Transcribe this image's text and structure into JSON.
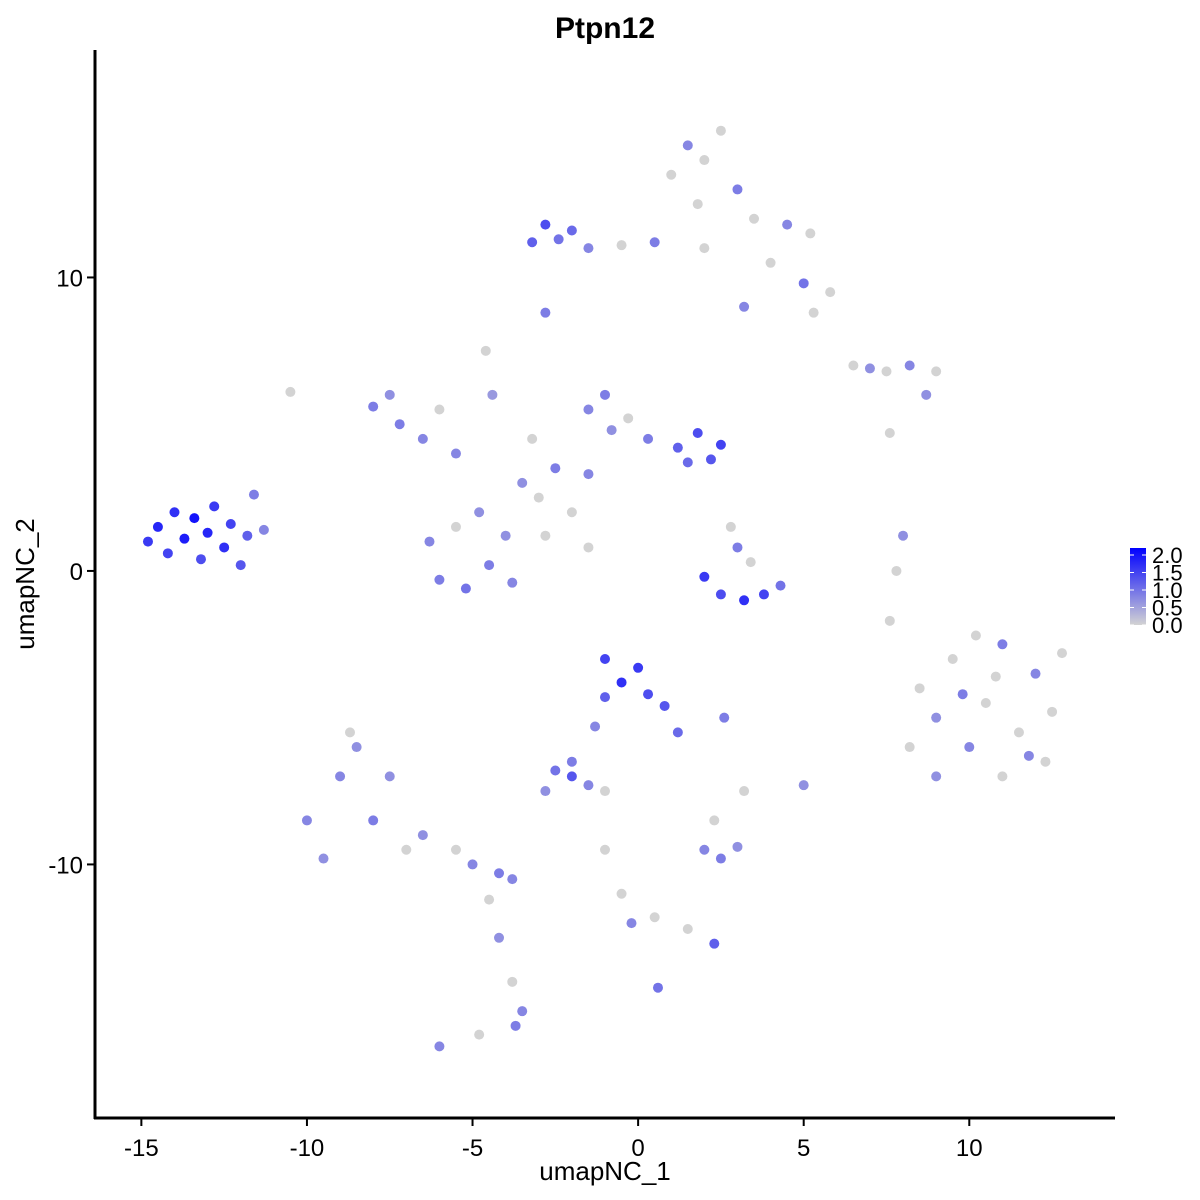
{
  "chart_data": {
    "type": "scatter",
    "title": "Ptpn12",
    "xlabel": "umapNC_1",
    "ylabel": "umapNC_2",
    "xlim": [
      -16.4,
      14.4
    ],
    "ylim": [
      -18.64,
      17.75
    ],
    "xticks": [
      -15,
      -10,
      -5,
      0,
      5,
      10
    ],
    "yticks": [
      -10,
      0,
      10
    ],
    "color_low": "#d3d3d3",
    "color_high": "#0000ff",
    "legend_lim": [
      0,
      2.2
    ],
    "legend_ticks": [
      {
        "value": 0,
        "label": "0.0"
      },
      {
        "value": 0.5,
        "label": "0.5"
      },
      {
        "value": 1,
        "label": "1.0"
      },
      {
        "value": 1.5,
        "label": "1.5"
      },
      {
        "value": 2,
        "label": "2.0"
      }
    ],
    "x": [
      -14.8,
      -14.5,
      -14.2,
      -14.0,
      -13.7,
      -13.4,
      -13.2,
      -13.0,
      -12.8,
      -12.5,
      -12.3,
      -12.0,
      -11.8,
      -11.6,
      -11.3,
      -8.0,
      -7.5,
      -7.2,
      -6.5,
      -6.0,
      -5.5,
      -4.6,
      -4.4,
      -6.3,
      -6.0,
      -5.2,
      -4.5,
      -4.0,
      -5.5,
      -4.8,
      -3.8,
      -3.5,
      -3.0,
      -2.5,
      -2.0,
      -1.5,
      -3.2,
      -1.5,
      -2.8,
      -1.5,
      -1.0,
      -0.8,
      -0.3,
      0.3,
      1.2,
      1.8,
      2.2,
      2.5,
      1.5,
      -3.2,
      -2.8,
      -2.4,
      -2.0,
      -1.5,
      -0.5,
      0.5,
      1.0,
      1.5,
      2.0,
      2.5,
      3.0,
      1.8,
      3.5,
      4.5,
      5.2,
      4.0,
      5.0,
      5.8,
      5.3,
      3.2,
      2.0,
      -2.8,
      6.5,
      7.0,
      7.5,
      8.2,
      9.0,
      8.7,
      7.6,
      -10.5,
      2.0,
      2.5,
      3.2,
      3.8,
      4.3,
      3.0,
      2.8,
      3.4,
      8.0,
      7.8,
      7.6,
      8.5,
      9.0,
      9.5,
      10.0,
      10.5,
      11.0,
      11.5,
      12.0,
      12.5,
      11.0,
      9.0,
      10.2,
      12.8,
      9.8,
      11.8,
      8.2,
      10.8,
      12.3,
      -10.0,
      -9.5,
      -9.0,
      -8.5,
      -8.0,
      -7.5,
      -8.7,
      -7.0,
      -6.5,
      -5.5,
      -5.0,
      -4.2,
      -3.8,
      -4.5,
      -4.2,
      -3.8,
      -3.5,
      -3.7,
      -6.0,
      -4.8,
      -1.0,
      -0.5,
      0,
      0.3,
      -1.0,
      0.8,
      1.2,
      -1.3,
      -2.0,
      -2.5,
      -2.0,
      -1.5,
      -2.8,
      -1.0,
      2.6,
      2.3,
      2.0,
      2.5,
      3.0,
      3.2,
      5.0,
      -1.0,
      -0.5,
      -0.2,
      0.5,
      1.5,
      2.3,
      0.6
    ],
    "y": [
      1.0,
      1.5,
      0.6,
      2.0,
      1.1,
      1.8,
      0.4,
      1.3,
      2.2,
      0.8,
      1.6,
      0.2,
      1.2,
      2.6,
      1.4,
      5.6,
      6.0,
      5.0,
      4.5,
      5.5,
      4.0,
      7.5,
      6.0,
      1.0,
      -0.3,
      -0.6,
      0.2,
      1.2,
      1.5,
      2.0,
      -0.4,
      3.0,
      2.5,
      3.5,
      2.0,
      3.3,
      4.5,
      0.8,
      1.2,
      5.5,
      6.0,
      4.8,
      5.2,
      4.5,
      4.2,
      4.7,
      3.8,
      4.3,
      3.7,
      11.2,
      11.8,
      11.3,
      11.6,
      11.0,
      11.1,
      11.2,
      13.5,
      14.5,
      14.0,
      15.0,
      13.0,
      12.5,
      12.0,
      11.8,
      11.5,
      10.5,
      9.8,
      9.5,
      8.8,
      9.0,
      11.0,
      8.8,
      7.0,
      6.9,
      6.8,
      7.0,
      6.8,
      6.0,
      4.7,
      6.1,
      -0.2,
      -0.8,
      -1.0,
      -0.8,
      -0.5,
      0.8,
      1.5,
      0.3,
      1.2,
      0,
      -1.7,
      -4.0,
      -5.0,
      -3.0,
      -6.0,
      -4.5,
      -2.5,
      -5.5,
      -3.5,
      -4.8,
      -7.0,
      -7.0,
      -2.2,
      -2.8,
      -4.2,
      -6.3,
      -6.0,
      -3.6,
      -6.5,
      -8.5,
      -9.8,
      -7.0,
      -6.0,
      -8.5,
      -7.0,
      -5.5,
      -9.5,
      -9.0,
      -9.5,
      -10.0,
      -10.3,
      -10.5,
      -11.2,
      -12.5,
      -14.0,
      -15.0,
      -15.5,
      -16.2,
      -15.8,
      -3.0,
      -3.8,
      -3.3,
      -4.2,
      -4.3,
      -4.6,
      -5.5,
      -5.3,
      -6.5,
      -6.8,
      -7.0,
      -7.3,
      -7.5,
      -7.5,
      -5.0,
      -8.5,
      -9.5,
      -9.8,
      -9.4,
      -7.5,
      -7.3,
      -9.5,
      -11.0,
      -12.0,
      -11.8,
      -12.2,
      -12.7,
      -14.2
    ],
    "expression": [
      1.6,
      1.8,
      1.5,
      1.7,
      1.9,
      2.0,
      1.4,
      1.8,
      1.6,
      1.7,
      1.5,
      1.3,
      1.2,
      0.9,
      0.8,
      0.9,
      0.7,
      0.9,
      0.8,
      0,
      0.8,
      0,
      0.6,
      0.8,
      0.9,
      1.0,
      0.9,
      0.7,
      0,
      0.7,
      0.8,
      0.7,
      0,
      0.9,
      0,
      0.8,
      0,
      0,
      0,
      0.8,
      0.9,
      0.7,
      0,
      0.9,
      1.2,
      1.4,
      1.3,
      1.5,
      1.1,
      1.2,
      1.4,
      1.0,
      1.1,
      0.8,
      0,
      0.9,
      0,
      0.8,
      0,
      0,
      0.9,
      0,
      0,
      0.8,
      0,
      0,
      1.0,
      0,
      0,
      0.8,
      0,
      0.9,
      0,
      0.7,
      0,
      0.8,
      0,
      0.7,
      0,
      0,
      1.6,
      1.4,
      1.7,
      1.5,
      1.0,
      0.9,
      0,
      0,
      0.7,
      0,
      0,
      0,
      0.7,
      0,
      0.8,
      0,
      0.9,
      0,
      0.8,
      0,
      0,
      0.7,
      0,
      0,
      0.9,
      0.8,
      0,
      0,
      0,
      0.8,
      0.7,
      0.8,
      0.7,
      0.9,
      0.7,
      0,
      0,
      0.7,
      0,
      0.8,
      0.9,
      0.8,
      0,
      0.7,
      0,
      0.8,
      0.9,
      0.8,
      0,
      1.5,
      1.7,
      1.6,
      1.4,
      1.2,
      1.3,
      1.1,
      0.8,
      0.9,
      1.0,
      1.3,
      0.8,
      0.7,
      0,
      0.9,
      0,
      0.8,
      0.9,
      0.7,
      0,
      0.7,
      0,
      0,
      0.8,
      0,
      0,
      1.2,
      1.0
    ]
  }
}
